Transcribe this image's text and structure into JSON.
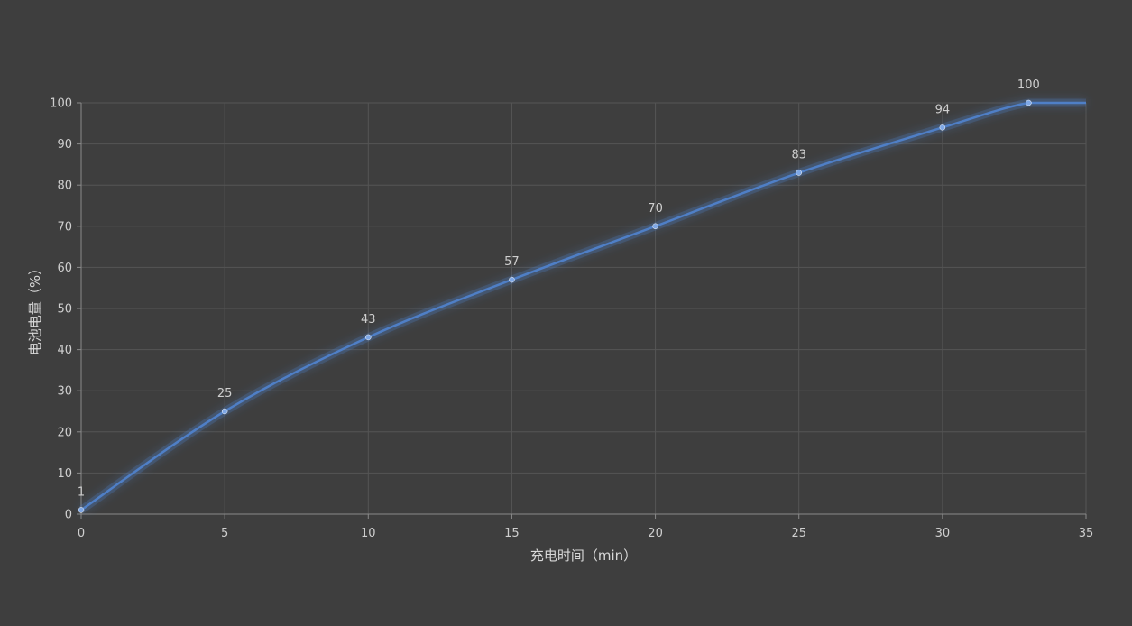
{
  "chart_data": {
    "type": "line",
    "title": "",
    "xlabel": "充电时间（min）",
    "ylabel": "电池电量（%）",
    "xlim": [
      0,
      35
    ],
    "ylim": [
      0,
      100
    ],
    "xticks": [
      0,
      5,
      10,
      15,
      20,
      25,
      30,
      35
    ],
    "yticks": [
      0,
      10,
      20,
      30,
      40,
      50,
      60,
      70,
      80,
      90,
      100
    ],
    "grid": true,
    "legend": "none",
    "series": [
      {
        "color": "#4f7fc6",
        "x": [
          0,
          5,
          10,
          15,
          20,
          25,
          30,
          33,
          35
        ],
        "y": [
          1,
          25,
          43,
          57,
          70,
          83,
          94,
          100,
          100
        ],
        "data_labels": [
          "1",
          "25",
          "43",
          "57",
          "70",
          "83",
          "94",
          "100",
          ""
        ]
      }
    ]
  },
  "colors": {
    "background": "#3e3e3e",
    "grid": "#555555",
    "axis": "#8a8a8a",
    "line": "#4f7fc6",
    "point": "#7fa8e6"
  }
}
